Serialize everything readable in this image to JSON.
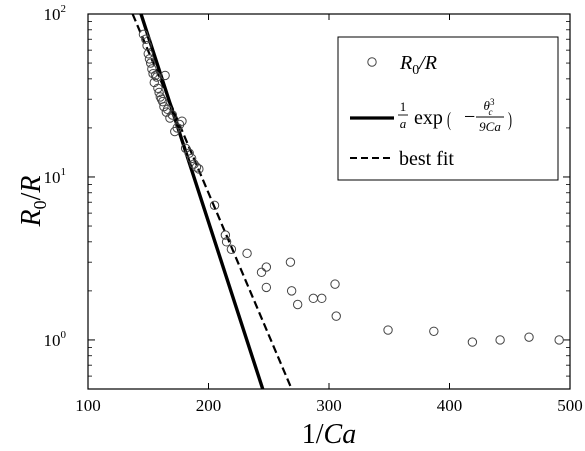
{
  "chart_data": {
    "type": "scatter",
    "xlabel": "1/Ca",
    "ylabel": "R0/R",
    "xlim": [
      100,
      500
    ],
    "ylim": [
      0.5,
      100
    ],
    "yscale": "log",
    "x_ticks": [
      "100",
      "200",
      "300",
      "400",
      "500"
    ],
    "y_ticks": [
      {
        "base": "10",
        "exp": "0",
        "value": 1
      },
      {
        "base": "10",
        "exp": "1",
        "value": 10
      },
      {
        "base": "10",
        "exp": "2",
        "value": 100
      }
    ],
    "grid": false,
    "legend_position": "top-right",
    "series": [
      {
        "name": "R0/R",
        "kind": "markers",
        "marker": "open-circle",
        "x": [
          146,
          148,
          149,
          150,
          151,
          152,
          153,
          154,
          155,
          156,
          157,
          158,
          159,
          160,
          161,
          162,
          163,
          164,
          165,
          166,
          168,
          170,
          172,
          174,
          176,
          178,
          181,
          184,
          186,
          188,
          190,
          192,
          205,
          214,
          215,
          219,
          232,
          244,
          248,
          248,
          268,
          269,
          274,
          287,
          294,
          305,
          306,
          349,
          387,
          419,
          442,
          466,
          491
        ],
        "y": [
          75,
          70,
          64,
          57,
          53,
          50,
          46,
          43,
          38,
          42,
          41,
          35,
          33,
          31,
          30,
          29,
          27,
          42,
          25,
          26,
          23,
          24,
          19,
          20,
          21,
          22,
          15,
          14,
          13,
          12,
          11.5,
          11.2,
          6.7,
          4.4,
          4.0,
          3.6,
          3.4,
          2.6,
          2.8,
          2.1,
          3.0,
          2.0,
          1.65,
          1.8,
          1.8,
          2.2,
          1.4,
          1.15,
          1.13,
          0.97,
          1.0,
          1.04,
          1.0
        ]
      },
      {
        "name": "(1/a) exp(−θc³/9Ca)",
        "kind": "line",
        "style": "solid",
        "x": [
          144,
          245
        ],
        "y": [
          100,
          0.5
        ]
      },
      {
        "name": "best fit",
        "kind": "line",
        "style": "dashed",
        "x": [
          137,
          269
        ],
        "y": [
          100,
          0.5
        ]
      }
    ],
    "legend": {
      "marker_label": {
        "base": "R",
        "sub": "0",
        "tail": "/R"
      },
      "model_label": {
        "num": "1",
        "den": "a",
        "fn": "exp",
        "frac_num": "θ",
        "frac_num_sub": "c",
        "frac_num_sup": "3",
        "frac_den": "9Ca",
        "minus": "−"
      },
      "fit_label": "best fit"
    }
  }
}
